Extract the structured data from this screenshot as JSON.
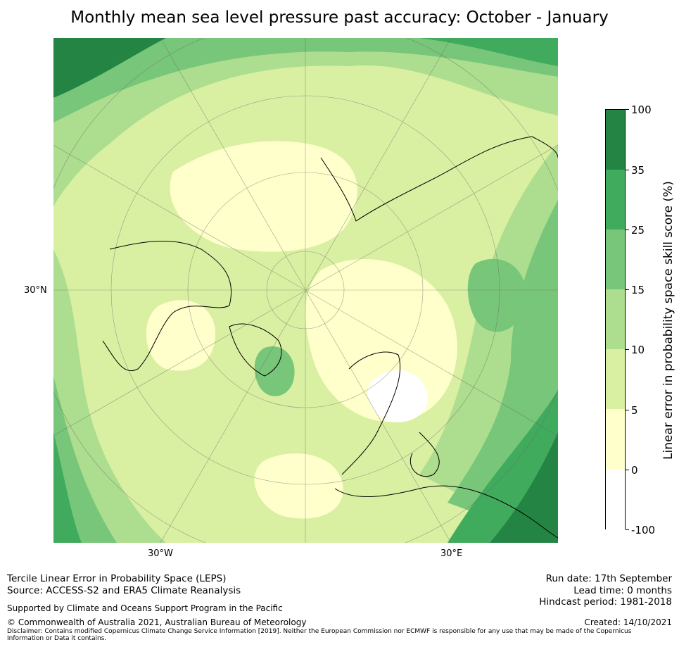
{
  "title": "Monthly mean sea level pressure past accuracy: October - January",
  "map": {
    "labels": {
      "lat_30n": "30°N",
      "lon_30w": "30°W",
      "lon_30e": "30°E"
    },
    "colors": {
      "white": "#ffffff",
      "pale_yellow": "#ffffcc",
      "yellow_green": "#d9f0a3",
      "light_green": "#addd8e",
      "mid_green": "#78c679",
      "green": "#41ab5d",
      "dark_green": "#238443",
      "coast": "#000000"
    }
  },
  "colorbar": {
    "label": "Linear error in probability space skill score (%)",
    "ticks": [
      "100",
      "35",
      "25",
      "15",
      "10",
      "5",
      "0",
      "-100"
    ],
    "colors": [
      "#238443",
      "#41ab5d",
      "#78c679",
      "#addd8e",
      "#d9f0a3",
      "#ffffcc",
      "#ffffff"
    ]
  },
  "footer": {
    "left_line1": "Tercile Linear Error in Probability Space (LEPS)",
    "left_line2": "Source: ACCESS-S2 and ERA5 Climate Reanalysis",
    "support": "Supported by Climate and Oceans Support Program in the Pacific",
    "copyright": "© Commonwealth of Australia 2021, Australian Bureau of Meteorology",
    "disclaimer_line1": "Disclaimer: Contains modified Copernicus Climate Change Service Information [2019]. Neither the European Commission nor ECMWF is responsible for any use that may be made of the Copernicus",
    "disclaimer_line2": "Information or Data it contains.",
    "run_date": "Run date: 17th September",
    "lead_time": "Lead time: 0 months",
    "hindcast": "Hindcast period: 1981-2018",
    "created": "Created: 14/10/2021"
  }
}
